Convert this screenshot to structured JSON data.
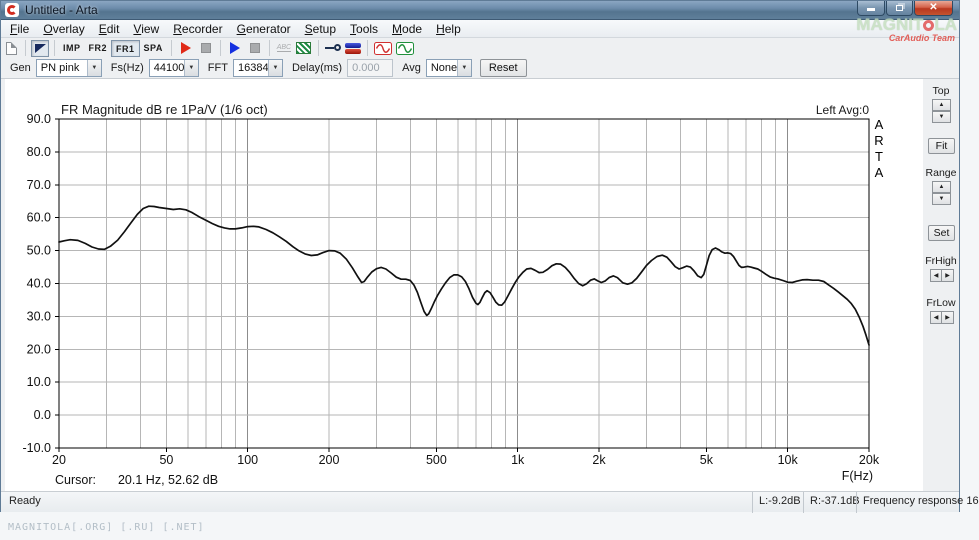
{
  "window": {
    "title": "Untitled - Arta"
  },
  "window_controls": {
    "minimize": "minimize",
    "restore": "restore",
    "close": "close"
  },
  "menu": {
    "items": [
      "File",
      "Overlay",
      "Edit",
      "View",
      "Recorder",
      "Generator",
      "Setup",
      "Tools",
      "Mode",
      "Help"
    ]
  },
  "toolbar": {
    "mode_buttons": [
      {
        "label": "IMP",
        "pressed": false
      },
      {
        "label": "FR2",
        "pressed": false
      },
      {
        "label": "FR1",
        "pressed": true
      },
      {
        "label": "SPA",
        "pressed": false
      }
    ],
    "abc_label": "ABC"
  },
  "gen_bar": {
    "gen_label": "Gen",
    "gen_value": "PN pink",
    "fs_label": "Fs(Hz)",
    "fs_value": "44100",
    "fft_label": "FFT",
    "fft_value": "16384",
    "delay_label": "Delay(ms)",
    "delay_value": "0.000",
    "avg_label": "Avg",
    "avg_value": "None",
    "reset_label": "Reset"
  },
  "side_panel": {
    "top_label": "Top",
    "fit_label": "Fit",
    "range_label": "Range",
    "set_label": "Set",
    "frhigh_label": "FrHigh",
    "frlow_label": "FrLow"
  },
  "chart": {
    "title": "FR Magnitude dB re 1Pa/V (1/6 oct)",
    "channel_label": "Left  Avg:0",
    "arta_letters": "A\nR\nT\nA",
    "cursor_label": "Cursor:",
    "cursor_value": "20.1 Hz, 52.62 dB",
    "x_axis_label": "F(Hz)"
  },
  "statusbar": {
    "ready": "Ready",
    "left_level": "L:-9.2dB",
    "right_level": "R:-37.1dB",
    "mode": "Frequency response 16"
  },
  "watermark": {
    "brand_pre": "MAGNIT",
    "brand_post": "LA",
    "team": "CarAudio Team"
  },
  "footer": {
    "text": "MAGNITOLA[.ORG] [.RU] [.NET]"
  },
  "colors": {
    "curve": "#111111",
    "grid_minor": "#b6b6b6",
    "grid_decade": "#8c8c8c",
    "plot_border": "#000000"
  },
  "chart_data": {
    "type": "line",
    "title": "FR Magnitude dB re 1Pa/V (1/6 oct)",
    "xlabel": "F(Hz)",
    "ylabel": "dB",
    "x_scale": "log",
    "xlim": [
      20,
      20000
    ],
    "ylim": [
      -10,
      90
    ],
    "grid": true,
    "legend_position": "none",
    "x_tick_values": [
      20,
      50,
      100,
      200,
      500,
      1000,
      2000,
      5000,
      10000,
      20000
    ],
    "x_ticks_labeled": [
      "20",
      "50",
      "100",
      "200",
      "500",
      "1k",
      "2k",
      "5k",
      "10k",
      "20k"
    ],
    "y_ticks": [
      90,
      80,
      70,
      60,
      50,
      40,
      30,
      20,
      10,
      0,
      -10
    ],
    "cursor": {
      "freq_hz": 20.1,
      "db": 52.62
    },
    "series": [
      {
        "name": "Left",
        "points": [
          [
            20,
            52.6
          ],
          [
            21,
            53.0
          ],
          [
            22,
            53.3
          ],
          [
            23.5,
            53.1
          ],
          [
            25,
            52.2
          ],
          [
            26.5,
            51.1
          ],
          [
            28,
            50.5
          ],
          [
            29.5,
            50.4
          ],
          [
            31,
            51.3
          ],
          [
            33,
            53.2
          ],
          [
            35,
            55.8
          ],
          [
            37,
            58.5
          ],
          [
            39,
            61.0
          ],
          [
            41,
            62.8
          ],
          [
            43,
            63.5
          ],
          [
            45,
            63.4
          ],
          [
            47,
            63.1
          ],
          [
            50,
            62.8
          ],
          [
            53,
            62.5
          ],
          [
            56,
            62.7
          ],
          [
            59,
            62.4
          ],
          [
            62,
            61.6
          ],
          [
            66,
            60.3
          ],
          [
            70,
            59.2
          ],
          [
            74,
            58.2
          ],
          [
            78,
            57.4
          ],
          [
            82,
            56.9
          ],
          [
            86,
            56.6
          ],
          [
            90,
            56.6
          ],
          [
            95,
            56.9
          ],
          [
            100,
            57.3
          ],
          [
            105,
            57.4
          ],
          [
            110,
            57.2
          ],
          [
            117,
            56.4
          ],
          [
            124,
            55.4
          ],
          [
            131,
            54.2
          ],
          [
            139,
            52.8
          ],
          [
            147,
            51.2
          ],
          [
            155,
            49.9
          ],
          [
            163,
            49.0
          ],
          [
            172,
            48.5
          ],
          [
            181,
            48.7
          ],
          [
            190,
            49.4
          ],
          [
            200,
            50.0
          ],
          [
            210,
            49.9
          ],
          [
            220,
            49.2
          ],
          [
            232,
            47.4
          ],
          [
            244,
            44.8
          ],
          [
            256,
            42.0
          ],
          [
            264,
            40.3
          ],
          [
            270,
            40.6
          ],
          [
            278,
            42.0
          ],
          [
            288,
            43.5
          ],
          [
            300,
            44.5
          ],
          [
            312,
            44.9
          ],
          [
            325,
            44.4
          ],
          [
            340,
            43.2
          ],
          [
            355,
            41.9
          ],
          [
            370,
            41.3
          ],
          [
            385,
            41.3
          ],
          [
            400,
            40.9
          ],
          [
            413,
            39.5
          ],
          [
            425,
            37.3
          ],
          [
            438,
            34.2
          ],
          [
            450,
            31.5
          ],
          [
            460,
            30.3
          ],
          [
            468,
            30.8
          ],
          [
            478,
            32.3
          ],
          [
            490,
            34.3
          ],
          [
            505,
            36.4
          ],
          [
            522,
            38.4
          ],
          [
            540,
            40.2
          ],
          [
            560,
            41.8
          ],
          [
            580,
            42.6
          ],
          [
            600,
            42.6
          ],
          [
            620,
            42.0
          ],
          [
            640,
            40.6
          ],
          [
            660,
            38.4
          ],
          [
            680,
            35.8
          ],
          [
            700,
            34.0
          ],
          [
            712,
            33.6
          ],
          [
            725,
            34.3
          ],
          [
            740,
            35.8
          ],
          [
            755,
            37.2
          ],
          [
            770,
            37.8
          ],
          [
            790,
            37.2
          ],
          [
            810,
            35.8
          ],
          [
            830,
            34.3
          ],
          [
            850,
            33.5
          ],
          [
            872,
            33.4
          ],
          [
            895,
            34.4
          ],
          [
            920,
            36.2
          ],
          [
            950,
            38.4
          ],
          [
            980,
            40.4
          ],
          [
            1010,
            42.0
          ],
          [
            1045,
            43.4
          ],
          [
            1080,
            44.4
          ],
          [
            1120,
            44.6
          ],
          [
            1160,
            44.0
          ],
          [
            1200,
            43.3
          ],
          [
            1240,
            43.4
          ],
          [
            1290,
            44.3
          ],
          [
            1340,
            45.4
          ],
          [
            1390,
            46.0
          ],
          [
            1440,
            45.9
          ],
          [
            1500,
            44.9
          ],
          [
            1560,
            43.3
          ],
          [
            1620,
            41.5
          ],
          [
            1680,
            40.0
          ],
          [
            1740,
            39.3
          ],
          [
            1800,
            39.9
          ],
          [
            1860,
            41.0
          ],
          [
            1920,
            41.4
          ],
          [
            1980,
            40.8
          ],
          [
            2040,
            40.3
          ],
          [
            2110,
            40.8
          ],
          [
            2180,
            41.8
          ],
          [
            2260,
            42.3
          ],
          [
            2340,
            41.8
          ],
          [
            2450,
            40.2
          ],
          [
            2550,
            39.8
          ],
          [
            2650,
            40.2
          ],
          [
            2760,
            41.6
          ],
          [
            2880,
            43.6
          ],
          [
            3000,
            45.5
          ],
          [
            3130,
            47.0
          ],
          [
            3280,
            48.2
          ],
          [
            3430,
            48.6
          ],
          [
            3570,
            48.0
          ],
          [
            3700,
            46.6
          ],
          [
            3830,
            45.1
          ],
          [
            3960,
            44.4
          ],
          [
            4090,
            44.8
          ],
          [
            4220,
            45.3
          ],
          [
            4360,
            45.0
          ],
          [
            4500,
            43.8
          ],
          [
            4640,
            42.3
          ],
          [
            4780,
            41.8
          ],
          [
            4890,
            42.8
          ],
          [
            5000,
            45.5
          ],
          [
            5120,
            48.5
          ],
          [
            5250,
            50.3
          ],
          [
            5400,
            50.8
          ],
          [
            5550,
            50.3
          ],
          [
            5700,
            49.6
          ],
          [
            5850,
            49.2
          ],
          [
            6000,
            49.3
          ],
          [
            6150,
            49.1
          ],
          [
            6300,
            48.2
          ],
          [
            6450,
            46.8
          ],
          [
            6600,
            45.5
          ],
          [
            6750,
            44.9
          ],
          [
            6900,
            45.0
          ],
          [
            7100,
            45.2
          ],
          [
            7300,
            45.0
          ],
          [
            7500,
            44.7
          ],
          [
            7750,
            44.4
          ],
          [
            8000,
            43.7
          ],
          [
            8300,
            42.8
          ],
          [
            8600,
            42.0
          ],
          [
            8900,
            41.6
          ],
          [
            9200,
            41.4
          ],
          [
            9600,
            40.9
          ],
          [
            10000,
            40.4
          ],
          [
            10400,
            40.3
          ],
          [
            10800,
            40.7
          ],
          [
            11300,
            41.1
          ],
          [
            11800,
            41.2
          ],
          [
            12400,
            41.0
          ],
          [
            13000,
            41.0
          ],
          [
            13600,
            40.6
          ],
          [
            14200,
            39.5
          ],
          [
            14800,
            38.5
          ],
          [
            15400,
            37.4
          ],
          [
            16000,
            36.3
          ],
          [
            16600,
            35.2
          ],
          [
            17200,
            33.9
          ],
          [
            17800,
            32.2
          ],
          [
            18400,
            29.8
          ],
          [
            19000,
            27.0
          ],
          [
            19500,
            24.3
          ],
          [
            20000,
            21.3
          ]
        ]
      }
    ]
  }
}
